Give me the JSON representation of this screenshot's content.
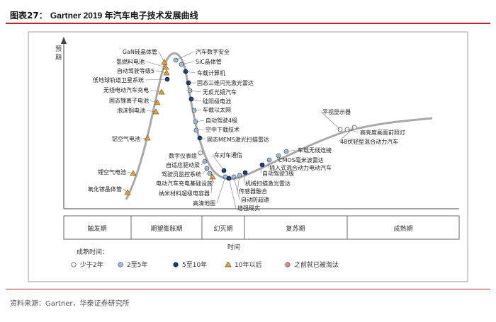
{
  "figure": {
    "title_prefix": "图表27：",
    "title_text": "Gartner 2019 年汽车电子技术发展曲线",
    "source": "资料来源：Gartner，华泰证券研究所"
  },
  "chart_data": {
    "type": "diagram",
    "y_axis_label": "预期",
    "x_axis_label": "时间",
    "phases": [
      "触发期",
      "期望膨胀期",
      "幻灭期",
      "复苏期",
      "成熟期"
    ],
    "legend": {
      "title": "成熟时间：",
      "items": [
        {
          "key": "lt2",
          "label": "少于2年",
          "color": "#ffffff"
        },
        {
          "key": "2to5",
          "label": "2至5年",
          "color": "#9cc3e6"
        },
        {
          "key": "5to10",
          "label": "5至10年",
          "color": "#1f3a70"
        },
        {
          "key": "gt10",
          "label": "10年以后",
          "color": "#e8a53a"
        },
        {
          "key": "obsolete",
          "label": "之前就已被淘汰",
          "color": "#e58a8a"
        }
      ]
    },
    "technologies": [
      {
        "label": "GaN硅晶体管",
        "maturity": "gt10"
      },
      {
        "label": "氢燃料电池",
        "maturity": "gt10"
      },
      {
        "label": "自动驾驶等级5",
        "maturity": "gt10"
      },
      {
        "label": "低地球轨道卫星系统",
        "maturity": "5to10"
      },
      {
        "label": "无线电动汽车充电",
        "maturity": "gt10"
      },
      {
        "label": "固态锂离子电池",
        "maturity": "gt10"
      },
      {
        "label": "泡沫铜电池",
        "maturity": "gt10"
      },
      {
        "label": "铝空气电池",
        "maturity": "gt10"
      },
      {
        "label": "锂空气电池",
        "maturity": "gt10"
      },
      {
        "label": "氧化镓晶体管",
        "maturity": "gt10"
      },
      {
        "label": "汽车数字安全",
        "maturity": "2to5"
      },
      {
        "label": "SiC晶体管",
        "maturity": "2to5"
      },
      {
        "label": "车载计算机",
        "maturity": "5to10"
      },
      {
        "label": "固态三维闪光激光雷达",
        "maturity": "5to10"
      },
      {
        "label": "无反光镜汽车",
        "maturity": "2to5"
      },
      {
        "label": "硅阳极电池",
        "maturity": "5to10"
      },
      {
        "label": "车载以太网",
        "maturity": "2to5"
      },
      {
        "label": "自动驾驶4级",
        "maturity": "2to5"
      },
      {
        "label": "空中下载技术",
        "maturity": "2to5"
      },
      {
        "label": "固态MEMS激光扫描雷达",
        "maturity": "5to10"
      },
      {
        "label": "数字仪表组",
        "maturity": "lt2"
      },
      {
        "label": "自适应驱动梁",
        "maturity": "2to5"
      },
      {
        "label": "驾驶员监控系统",
        "maturity": "2to5"
      },
      {
        "label": "电动汽车充电基础设施",
        "maturity": "2to5"
      },
      {
        "label": "纳米材料超级电容器",
        "maturity": "gt10"
      },
      {
        "label": "车对车通信",
        "maturity": "5to10"
      },
      {
        "label": "高清地图",
        "maturity": "2to5"
      },
      {
        "label": "增强现实",
        "maturity": "5to10"
      },
      {
        "label": "自动防超速",
        "maturity": "2to5"
      },
      {
        "label": "传感器融合",
        "maturity": "2to5"
      },
      {
        "label": "机械扫描激光雷达",
        "maturity": "5to10"
      },
      {
        "label": "自动驾驶3级",
        "maturity": "5to10"
      },
      {
        "label": "插入式混合动力电动汽车",
        "maturity": "2to5"
      },
      {
        "label": "CMOS毫米波雷达",
        "maturity": "2to5"
      },
      {
        "label": "车载无线连接",
        "maturity": "2to5"
      },
      {
        "label": "平视显示器",
        "maturity": "lt2"
      },
      {
        "label": "高亮度画面前照灯",
        "maturity": "lt2"
      },
      {
        "label": "48伏轻型混合动力汽车",
        "maturity": "lt2"
      }
    ]
  }
}
